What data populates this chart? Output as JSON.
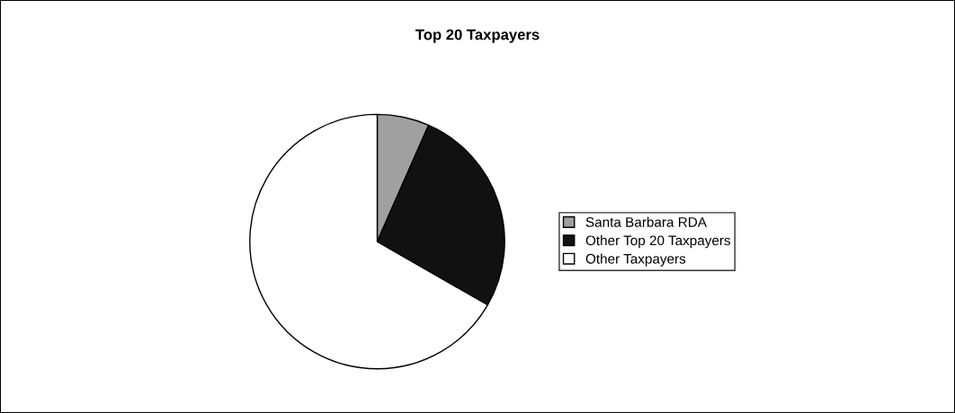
{
  "chart_data": {
    "type": "pie",
    "title": "Top 20 Taxpayers",
    "categories": [
      "Santa Barbara RDA",
      "Other Top 20 Taxpayers",
      "Other Taxpayers"
    ],
    "values": [
      6.6,
      26.7,
      66.7
    ],
    "colors": [
      "#a0a0a0",
      "#111111",
      "#ffffff"
    ],
    "legend": "right"
  }
}
